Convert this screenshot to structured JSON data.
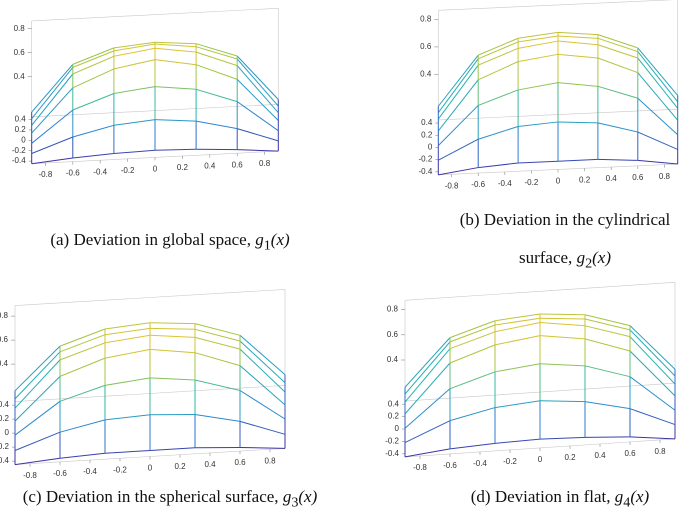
{
  "chart_data": [
    {
      "type": "surface",
      "caption": "(a) Deviation in global space,",
      "caption_func": "g",
      "caption_sub": "1",
      "caption_arg": "(x)",
      "x": [
        -0.9,
        -0.6,
        -0.3,
        0,
        0.3,
        0.6,
        0.9
      ],
      "y": [
        -0.45,
        -0.3,
        -0.15,
        0,
        0.15,
        0.3,
        0.45
      ],
      "z": [
        [
          0.0,
          0.03,
          0.05,
          0.06,
          0.05,
          0.03,
          0.0
        ],
        [
          0.02,
          0.14,
          0.22,
          0.25,
          0.22,
          0.14,
          0.02
        ],
        [
          0.04,
          0.3,
          0.42,
          0.46,
          0.42,
          0.3,
          0.04
        ],
        [
          0.06,
          0.42,
          0.56,
          0.62,
          0.56,
          0.42,
          0.06
        ],
        [
          0.06,
          0.47,
          0.6,
          0.65,
          0.6,
          0.47,
          0.06
        ],
        [
          0.05,
          0.46,
          0.58,
          0.62,
          0.58,
          0.46,
          0.05
        ],
        [
          0.04,
          0.42,
          0.54,
          0.57,
          0.54,
          0.42,
          0.04
        ]
      ],
      "xlim": [
        -0.9,
        0.9
      ],
      "ylim": [
        -0.45,
        0.45
      ],
      "zlim": [
        0,
        0.8
      ],
      "xticks": [
        -0.8,
        -0.6,
        -0.4,
        -0.2,
        0,
        0.2,
        0.4,
        0.6,
        0.8
      ],
      "yticks": [
        -0.4,
        -0.2,
        0,
        0.2,
        0.4
      ],
      "zticks": [
        0.4,
        0.6,
        0.8
      ],
      "colormap": [
        "#3e2a9e",
        "#2c7fd6",
        "#26b5b0",
        "#9fc545",
        "#e8c330"
      ]
    },
    {
      "type": "surface",
      "caption": "(b) Deviation in the cylindrical surface,",
      "caption_func": "g",
      "caption_sub": "2",
      "caption_arg": "(x)",
      "x": [
        -0.9,
        -0.6,
        -0.3,
        0,
        0.3,
        0.6,
        0.9
      ],
      "y": [
        -0.45,
        -0.3,
        -0.15,
        0,
        0.15,
        0.3,
        0.45
      ],
      "z": [
        [
          0.0,
          0.04,
          0.06,
          0.06,
          0.06,
          0.04,
          0.0
        ],
        [
          0.04,
          0.18,
          0.26,
          0.28,
          0.26,
          0.18,
          0.04
        ],
        [
          0.08,
          0.36,
          0.46,
          0.5,
          0.46,
          0.36,
          0.08
        ],
        [
          0.12,
          0.48,
          0.6,
          0.64,
          0.6,
          0.48,
          0.12
        ],
        [
          0.14,
          0.52,
          0.63,
          0.67,
          0.63,
          0.52,
          0.14
        ],
        [
          0.12,
          0.5,
          0.61,
          0.64,
          0.61,
          0.5,
          0.12
        ],
        [
          0.1,
          0.46,
          0.57,
          0.6,
          0.57,
          0.46,
          0.1
        ]
      ],
      "xlim": [
        -0.9,
        0.9
      ],
      "ylim": [
        -0.45,
        0.45
      ],
      "zlim": [
        0,
        0.8
      ],
      "xticks": [
        -0.8,
        -0.6,
        -0.4,
        -0.2,
        0,
        0.2,
        0.4,
        0.6,
        0.8
      ],
      "yticks": [
        -0.4,
        -0.2,
        0,
        0.2,
        0.4
      ],
      "zticks": [
        0.4,
        0.6,
        0.8
      ],
      "colormap": [
        "#3e2a9e",
        "#2c7fd6",
        "#26b5b0",
        "#9fc545",
        "#e8c330"
      ]
    },
    {
      "type": "surface",
      "caption": "(c) Deviation in the spherical surface,",
      "caption_func": "g",
      "caption_sub": "3",
      "caption_arg": "(x)",
      "x": [
        -0.9,
        -0.6,
        -0.3,
        0,
        0.3,
        0.6,
        0.9
      ],
      "y": [
        -0.45,
        -0.3,
        -0.15,
        0,
        0.15,
        0.3,
        0.45
      ],
      "z": [
        [
          0.0,
          0.03,
          0.05,
          0.05,
          0.05,
          0.03,
          0.0
        ],
        [
          0.03,
          0.16,
          0.24,
          0.26,
          0.24,
          0.16,
          0.03
        ],
        [
          0.07,
          0.33,
          0.44,
          0.48,
          0.44,
          0.33,
          0.07
        ],
        [
          0.1,
          0.45,
          0.58,
          0.63,
          0.58,
          0.45,
          0.1
        ],
        [
          0.12,
          0.5,
          0.62,
          0.66,
          0.62,
          0.5,
          0.12
        ],
        [
          0.11,
          0.48,
          0.6,
          0.63,
          0.6,
          0.48,
          0.11
        ],
        [
          0.09,
          0.44,
          0.56,
          0.59,
          0.56,
          0.44,
          0.09
        ]
      ],
      "xlim": [
        -0.9,
        0.9
      ],
      "ylim": [
        -0.45,
        0.45
      ],
      "zlim": [
        0,
        0.8
      ],
      "xticks": [
        -0.8,
        -0.6,
        -0.4,
        -0.2,
        0,
        0.2,
        0.4,
        0.6,
        0.8
      ],
      "yticks": [
        -0.4,
        -0.2,
        0,
        0.2,
        0.4
      ],
      "zticks": [
        0.4,
        0.6,
        0.8
      ],
      "colormap": [
        "#3e2a9e",
        "#2c7fd6",
        "#26b5b0",
        "#9fc545",
        "#e8c330"
      ]
    },
    {
      "type": "surface",
      "caption": "(d) Deviation in flat,",
      "caption_func": "g",
      "caption_sub": "4",
      "caption_arg": "(x)",
      "x": [
        -0.9,
        -0.6,
        -0.3,
        0,
        0.3,
        0.6,
        0.9
      ],
      "y": [
        -0.45,
        -0.3,
        -0.15,
        0,
        0.15,
        0.3,
        0.45
      ],
      "z": [
        [
          0.0,
          0.04,
          0.06,
          0.07,
          0.06,
          0.04,
          0.0
        ],
        [
          0.04,
          0.19,
          0.27,
          0.3,
          0.27,
          0.19,
          0.04
        ],
        [
          0.08,
          0.37,
          0.48,
          0.52,
          0.48,
          0.37,
          0.08
        ],
        [
          0.12,
          0.5,
          0.62,
          0.67,
          0.62,
          0.5,
          0.12
        ],
        [
          0.14,
          0.54,
          0.65,
          0.7,
          0.65,
          0.54,
          0.14
        ],
        [
          0.13,
          0.52,
          0.63,
          0.66,
          0.63,
          0.52,
          0.13
        ],
        [
          0.11,
          0.48,
          0.59,
          0.62,
          0.59,
          0.48,
          0.11
        ]
      ],
      "xlim": [
        -0.9,
        0.9
      ],
      "ylim": [
        -0.45,
        0.45
      ],
      "zlim": [
        0,
        0.8
      ],
      "xticks": [
        -0.8,
        -0.6,
        -0.4,
        -0.2,
        0,
        0.2,
        0.4,
        0.6,
        0.8
      ],
      "yticks": [
        -0.4,
        -0.2,
        0,
        0.2,
        0.4
      ],
      "zticks": [
        0.4,
        0.6,
        0.8
      ],
      "colormap": [
        "#3e2a9e",
        "#2c7fd6",
        "#26b5b0",
        "#9fc545",
        "#e8c330"
      ]
    }
  ]
}
